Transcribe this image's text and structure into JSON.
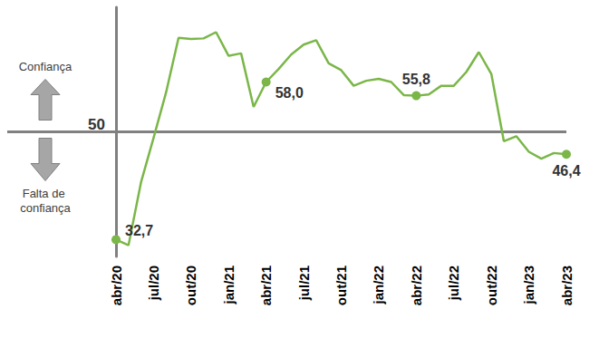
{
  "chart_data": {
    "type": "line",
    "categories": [
      "abr/20",
      null,
      null,
      "jul/20",
      null,
      null,
      "out/20",
      null,
      null,
      "jan/21",
      null,
      null,
      "abr/21",
      null,
      null,
      "jul/21",
      null,
      null,
      "out/21",
      null,
      null,
      "jan/22",
      null,
      null,
      "abr/22",
      null,
      null,
      "jul/22",
      null,
      null,
      "out/22",
      null,
      null,
      "jan/23",
      null,
      null,
      "abr/23"
    ],
    "values": [
      32.7,
      31.8,
      41.9,
      49.0,
      56.3,
      65.1,
      64.9,
      65.0,
      66.0,
      62.2,
      62.6,
      54.0,
      58.0,
      60.1,
      62.4,
      64.0,
      64.7,
      61.0,
      59.9,
      57.4,
      58.2,
      58.5,
      58.0,
      55.9,
      55.8,
      56.0,
      57.4,
      57.4,
      59.6,
      62.8,
      59.3,
      48.5,
      49.3,
      46.8,
      45.7,
      46.6,
      46.4
    ],
    "value_labels": [
      "32,7",
      null,
      null,
      null,
      null,
      null,
      null,
      null,
      null,
      null,
      null,
      null,
      "58,0",
      null,
      null,
      null,
      null,
      null,
      null,
      null,
      null,
      null,
      null,
      null,
      "55,8",
      null,
      null,
      null,
      null,
      null,
      null,
      null,
      null,
      null,
      null,
      null,
      "46,4"
    ],
    "color": "#7ab648",
    "ylim": [
      30,
      70
    ],
    "yticks": [
      50
    ],
    "grid": true,
    "data_labels": true,
    "annotations": [
      "Confiança",
      "Falta de confiança"
    ]
  }
}
